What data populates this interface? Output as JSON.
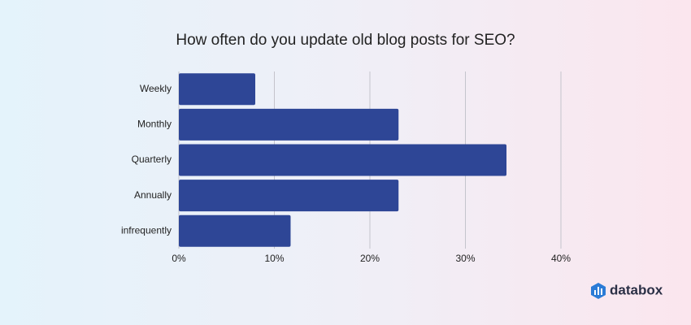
{
  "chart_data": {
    "type": "barh",
    "title": "How often do you update old blog posts for SEO?",
    "categories": [
      "Weekly",
      "Monthly",
      "Quarterly",
      "Annually",
      "infrequently"
    ],
    "values": [
      8,
      23,
      34.3,
      23,
      11.7
    ],
    "color": "#2e4696",
    "xlim": [
      0,
      40
    ],
    "xticks": [
      {
        "value": 0,
        "label": "0%"
      },
      {
        "value": 10,
        "label": "10%"
      },
      {
        "value": 20,
        "label": "20%"
      },
      {
        "value": 30,
        "label": "30%"
      },
      {
        "value": 40,
        "label": "40%"
      }
    ],
    "grid": true,
    "logo_text": "databox"
  }
}
